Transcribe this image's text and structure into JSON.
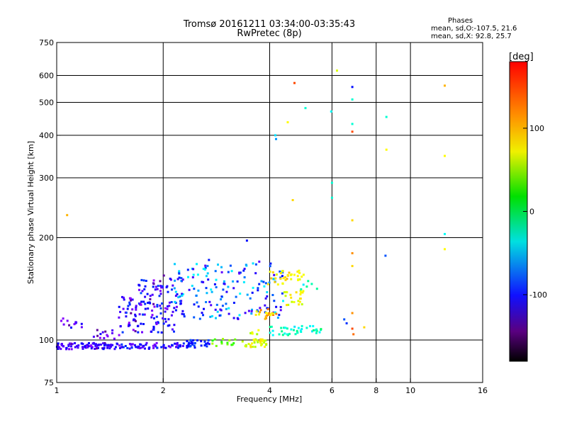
{
  "chart_data": {
    "type": "scatter",
    "title": "Tromsø 20161211 03:34:00-03:35:43",
    "subtitle": "RwPretec (8p)",
    "xlabel": "Frequency [MHz]",
    "ylabel": "Stationary phase Virtual Height [km]",
    "x_scale": "log",
    "y_scale": "log",
    "xlim": [
      1,
      16
    ],
    "ylim": [
      75,
      750
    ],
    "x_ticks": [
      1,
      2,
      4,
      6,
      8,
      10,
      16
    ],
    "x_tick_labels": [
      "1",
      "2",
      "4",
      "6",
      "8",
      "10",
      "16"
    ],
    "x_gridlines": [
      2,
      4,
      6,
      8,
      10
    ],
    "y_ticks": [
      75,
      100,
      200,
      300,
      400,
      500,
      600,
      750
    ],
    "y_tick_labels": [
      "75",
      "100",
      "200",
      "300",
      "400",
      "500",
      "600",
      "750"
    ],
    "y_gridlines": [
      100,
      200,
      300,
      400,
      500,
      600
    ],
    "grid": true,
    "colorbar": {
      "label": "[deg]",
      "range": [
        -180,
        180
      ],
      "ticks": [
        100,
        0,
        -100
      ],
      "tick_labels": [
        "100",
        "0",
        "-100"
      ],
      "colormap": "rainbow"
    },
    "phase_stats": {
      "title": "Phases",
      "o_line": "mean, sd,O:-107.5, 21.6",
      "x_line": "mean, sd,X:  92.8, 25.7"
    },
    "clusters": [
      {
        "x": [
          1.0,
          1.45
        ],
        "y": [
          94,
          98
        ],
        "phase": [
          -150,
          -100
        ],
        "n": 90
      },
      {
        "x": [
          1.45,
          2.3
        ],
        "y": [
          94,
          98
        ],
        "phase": [
          -140,
          -85
        ],
        "n": 70
      },
      {
        "x": [
          2.3,
          2.75
        ],
        "y": [
          95,
          100
        ],
        "phase": [
          -110,
          -80
        ],
        "n": 30
      },
      {
        "x": [
          2.75,
          3.2
        ],
        "y": [
          96,
          101
        ],
        "phase": [
          40,
          90
        ],
        "n": 14
      },
      {
        "x": [
          3.35,
          3.95
        ],
        "y": [
          95,
          101
        ],
        "phase": [
          85,
          120
        ],
        "n": 35
      },
      {
        "x": [
          1.03,
          1.18
        ],
        "y": [
          108,
          116
        ],
        "phase": [
          -150,
          -100
        ],
        "n": 12
      },
      {
        "x": [
          1.25,
          1.55
        ],
        "y": [
          100,
          107
        ],
        "phase": [
          -150,
          -100
        ],
        "n": 14
      },
      {
        "x": [
          1.5,
          2.15
        ],
        "y": [
          105,
          135
        ],
        "phase": [
          -150,
          -85
        ],
        "n": 100
      },
      {
        "x": [
          1.7,
          2.25
        ],
        "y": [
          125,
          155
        ],
        "phase": [
          -150,
          -80
        ],
        "n": 50
      },
      {
        "x": [
          2.15,
          4.4
        ],
        "y": [
          115,
          170
        ],
        "phase": [
          -130,
          -30
        ],
        "n": 170
      },
      {
        "x": [
          3.6,
          4.2
        ],
        "y": [
          115,
          125
        ],
        "phase": [
          100,
          160
        ],
        "n": 22
      },
      {
        "x": [
          3.8,
          4.6
        ],
        "y": [
          145,
          160
        ],
        "phase": [
          100,
          130
        ],
        "n": 20
      },
      {
        "x": [
          4.4,
          5.0
        ],
        "y": [
          125,
          140
        ],
        "phase": [
          90,
          120
        ],
        "n": 22
      },
      {
        "x": [
          4.5,
          5.0
        ],
        "y": [
          150,
          160
        ],
        "phase": [
          90,
          115
        ],
        "n": 14
      },
      {
        "x": [
          4.0,
          5.6
        ],
        "y": [
          103,
          110
        ],
        "phase": [
          -40,
          10
        ],
        "n": 40
      },
      {
        "x": [
          3.5,
          3.75
        ],
        "y": [
          104,
          108
        ],
        "phase": [
          60,
          110
        ],
        "n": 5
      },
      {
        "x": [
          4.8,
          5.5
        ],
        "y": [
          140,
          150
        ],
        "phase": [
          -40,
          0
        ],
        "n": 6
      },
      {
        "x": [
          2.4,
          2.7
        ],
        "y": [
          165,
          175
        ],
        "phase": [
          -100,
          -20
        ],
        "n": 3
      }
    ],
    "points": [
      {
        "x": 1.07,
        "y": 233,
        "phase": 130
      },
      {
        "x": 3.45,
        "y": 196,
        "phase": -100
      },
      {
        "x": 4.7,
        "y": 570,
        "phase": 160
      },
      {
        "x": 4.5,
        "y": 437,
        "phase": 110
      },
      {
        "x": 4.15,
        "y": 400,
        "phase": -40
      },
      {
        "x": 4.17,
        "y": 390,
        "phase": -60
      },
      {
        "x": 5.05,
        "y": 481,
        "phase": -20
      },
      {
        "x": 5.97,
        "y": 470,
        "phase": -30
      },
      {
        "x": 6.0,
        "y": 290,
        "phase": -20
      },
      {
        "x": 6.0,
        "y": 262,
        "phase": -20
      },
      {
        "x": 4.65,
        "y": 258,
        "phase": 120
      },
      {
        "x": 6.85,
        "y": 555,
        "phase": -100
      },
      {
        "x": 6.85,
        "y": 510,
        "phase": -20
      },
      {
        "x": 6.85,
        "y": 432,
        "phase": -20
      },
      {
        "x": 6.85,
        "y": 410,
        "phase": 160
      },
      {
        "x": 6.85,
        "y": 225,
        "phase": 120
      },
      {
        "x": 6.85,
        "y": 180,
        "phase": 140
      },
      {
        "x": 6.85,
        "y": 165,
        "phase": 120
      },
      {
        "x": 6.85,
        "y": 120,
        "phase": 140
      },
      {
        "x": 6.85,
        "y": 108,
        "phase": 160
      },
      {
        "x": 6.9,
        "y": 104,
        "phase": 150
      },
      {
        "x": 6.5,
        "y": 115,
        "phase": -80
      },
      {
        "x": 6.6,
        "y": 112,
        "phase": -90
      },
      {
        "x": 7.4,
        "y": 109,
        "phase": 120
      },
      {
        "x": 8.55,
        "y": 453,
        "phase": -20
      },
      {
        "x": 8.55,
        "y": 363,
        "phase": 110
      },
      {
        "x": 8.5,
        "y": 177,
        "phase": -80
      },
      {
        "x": 12.5,
        "y": 560,
        "phase": 130
      },
      {
        "x": 12.5,
        "y": 348,
        "phase": 110
      },
      {
        "x": 12.5,
        "y": 205,
        "phase": -30
      },
      {
        "x": 12.5,
        "y": 185,
        "phase": 110
      },
      {
        "x": 6.2,
        "y": 620,
        "phase": 100
      }
    ]
  }
}
